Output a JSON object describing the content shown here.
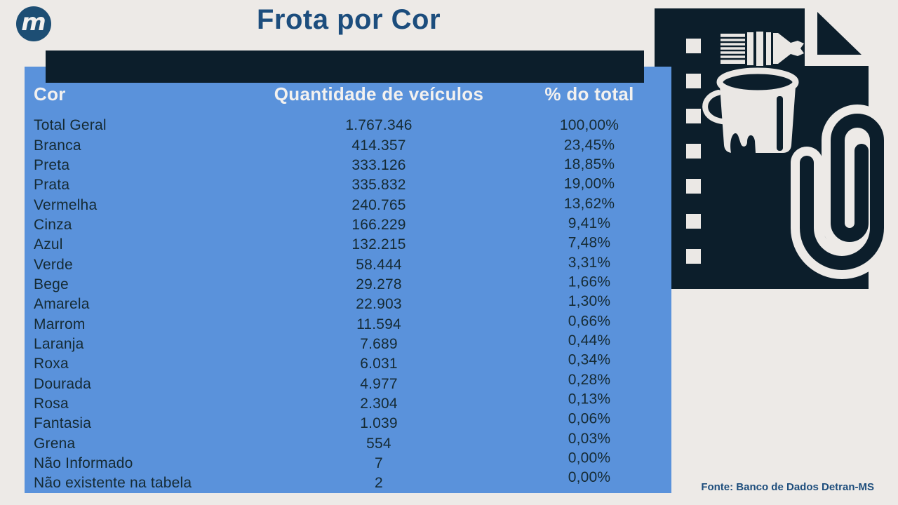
{
  "logo": {
    "letter": "m"
  },
  "title": "Frota por Cor",
  "table": {
    "headers": [
      "Cor",
      "Quantidade de veículos",
      "% do total"
    ],
    "rows": [
      {
        "color": "Total Geral",
        "qty": "1.767.346",
        "pct": "100,00%"
      },
      {
        "color": "Branca",
        "qty": "414.357",
        "pct": "23,45%"
      },
      {
        "color": "Preta",
        "qty": "333.126",
        "pct": "18,85%"
      },
      {
        "color": "Prata",
        "qty": "335.832",
        "pct": "19,00%"
      },
      {
        "color": "Vermelha",
        "qty": "240.765",
        "pct": "13,62%"
      },
      {
        "color": "Cinza",
        "qty": "166.229",
        "pct": "9,41%"
      },
      {
        "color": "Azul",
        "qty": "132.215",
        "pct": "7,48%"
      },
      {
        "color": "Verde",
        "qty": "58.444",
        "pct": "3,31%"
      },
      {
        "color": "Bege",
        "qty": "29.278",
        "pct": "1,66%"
      },
      {
        "color": "Amarela",
        "qty": "22.903",
        "pct": "1,30%"
      },
      {
        "color": "Marrom",
        "qty": "11.594",
        "pct": "0,66%"
      },
      {
        "color": "Laranja",
        "qty": "7.689",
        "pct": "0,44%"
      },
      {
        "color": "Roxa",
        "qty": "6.031",
        "pct": "0,34%"
      },
      {
        "color": "Dourada",
        "qty": "4.977",
        "pct": "0,28%"
      },
      {
        "color": "Rosa",
        "qty": "2.304",
        "pct": "0,13%"
      },
      {
        "color": "Fantasia",
        "qty": "1.039",
        "pct": "0,06%"
      },
      {
        "color": "Grena",
        "qty": "554",
        "pct": "0,03%"
      },
      {
        "color": "Não Informado",
        "qty": "7",
        "pct": "0,00%"
      },
      {
        "color": "Não existente na tabela",
        "qty": "2",
        "pct": "0,00%"
      }
    ]
  },
  "chart_data": {
    "type": "table",
    "title": "Frota por Cor",
    "columns": [
      "Cor",
      "Quantidade de veículos",
      "% do total"
    ],
    "categories": [
      "Total Geral",
      "Branca",
      "Preta",
      "Prata",
      "Vermelha",
      "Cinza",
      "Azul",
      "Verde",
      "Bege",
      "Amarela",
      "Marrom",
      "Laranja",
      "Roxa",
      "Dourada",
      "Rosa",
      "Fantasia",
      "Grena",
      "Não Informado",
      "Não existente na tabela"
    ],
    "quantities": [
      1767346,
      414357,
      333126,
      335832,
      240765,
      166229,
      132215,
      58444,
      29278,
      22903,
      11594,
      7689,
      6031,
      4977,
      2304,
      1039,
      554,
      7,
      2
    ],
    "percent_of_total": [
      100.0,
      23.45,
      18.85,
      19.0,
      13.62,
      9.41,
      7.48,
      3.31,
      1.66,
      1.3,
      0.66,
      0.44,
      0.34,
      0.28,
      0.13,
      0.06,
      0.03,
      0.0,
      0.0
    ]
  },
  "source": {
    "label": "Fonte: Banco de Dados Detran-MS"
  },
  "colors": {
    "background": "#edeae7",
    "panel_blue": "#5a92db",
    "dark_navy": "#0c1e2b",
    "title_blue": "#1c4d7d",
    "row_text": "#152a33",
    "header_text": "#f3f1ef"
  }
}
